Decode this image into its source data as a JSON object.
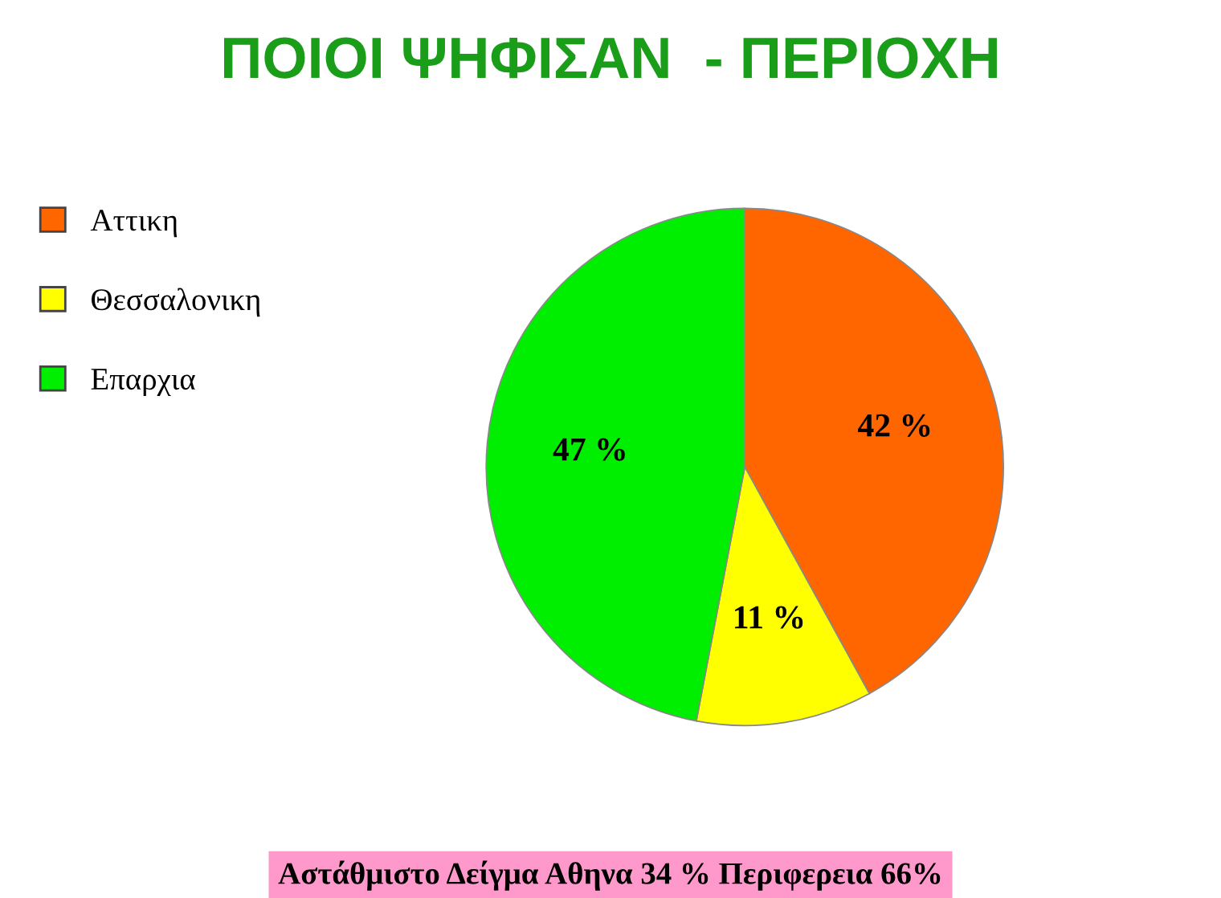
{
  "chart_data": {
    "type": "pie",
    "title": "ΠΟΙΟΙ ΨΗΦΙΣΑΝ  - ΠΕΡΙΟΧΗ",
    "categories": [
      "Αττικη",
      "Θεσσαλονικη",
      "Επαρχια"
    ],
    "values": [
      42,
      11,
      47
    ],
    "colors": [
      "#ff6600",
      "#ffff00",
      "#00ee00"
    ],
    "value_labels": [
      "42 %",
      "11 %",
      "47 %"
    ],
    "legend": "left",
    "annotations": [
      "Αστάθμιστο Δείγμα Αθηνα 34 % Περιφερεια 66%"
    ]
  }
}
